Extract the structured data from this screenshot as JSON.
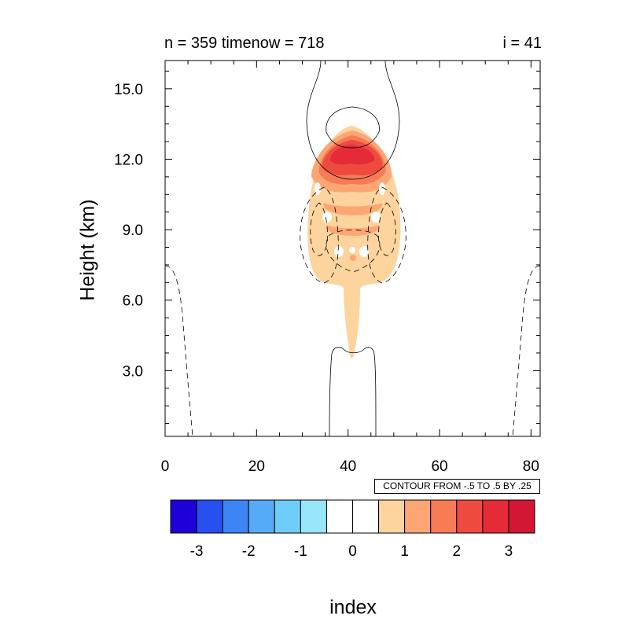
{
  "chart_data": {
    "type": "contour",
    "title_left": "n = 359 timenow = 718",
    "title_right": "i = 41",
    "xlabel": "index",
    "ylabel": "Height (km)",
    "xlim": [
      0,
      82
    ],
    "ylim": [
      0.2,
      16.2
    ],
    "x_ticks": [
      0,
      20,
      40,
      60,
      80
    ],
    "y_ticks": [
      3.0,
      6.0,
      9.0,
      12.0,
      15.0
    ],
    "contour_info": "CONTOUR FROM -.5 TO .5 BY .25",
    "colorbar": {
      "labels": [
        "-3",
        "-2",
        "-1",
        "0",
        "1",
        "2",
        "3"
      ],
      "colors": [
        "#1e00d8",
        "#2850ef",
        "#3c84f6",
        "#56abf7",
        "#6fcdf9",
        "#98e6fa",
        "#ffffff",
        "#ffffff",
        "#fdd49e",
        "#fca773",
        "#f77b55",
        "#ef4a40",
        "#e52a38",
        "#d31634"
      ]
    }
  }
}
